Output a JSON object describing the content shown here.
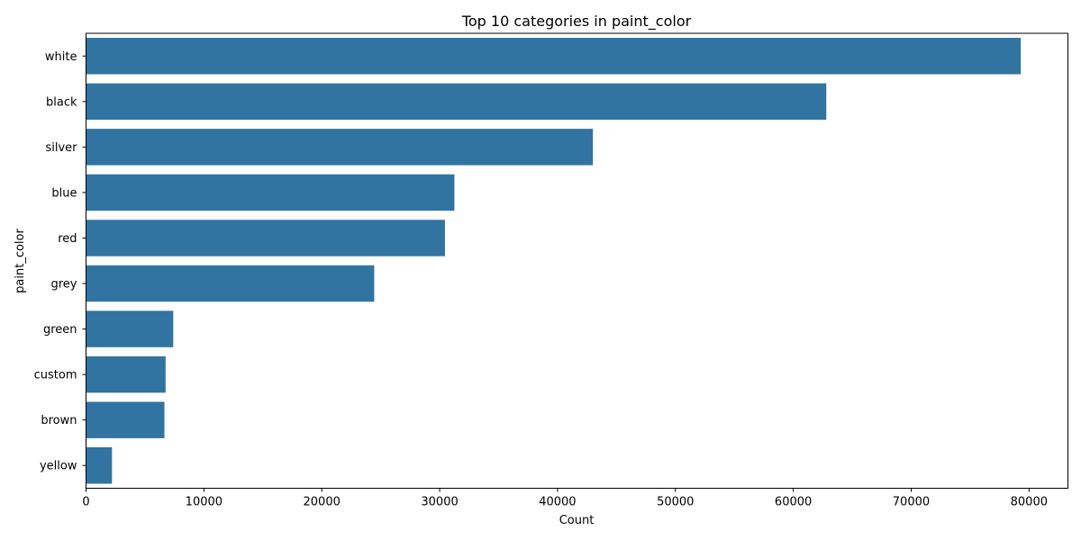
{
  "chart_data": {
    "type": "bar",
    "orientation": "horizontal",
    "title": "Top 10 categories in paint_color",
    "xlabel": "Count",
    "ylabel": "paint_color",
    "categories": [
      "white",
      "black",
      "silver",
      "blue",
      "red",
      "grey",
      "green",
      "custom",
      "brown",
      "yellow"
    ],
    "values": [
      79300,
      62800,
      43000,
      31250,
      30450,
      24450,
      7400,
      6750,
      6650,
      2200
    ],
    "xlim": [
      0,
      83300
    ],
    "xticks": [
      0,
      10000,
      20000,
      30000,
      40000,
      50000,
      60000,
      70000,
      80000
    ],
    "grid": false,
    "bar_color": "#3274a1"
  }
}
